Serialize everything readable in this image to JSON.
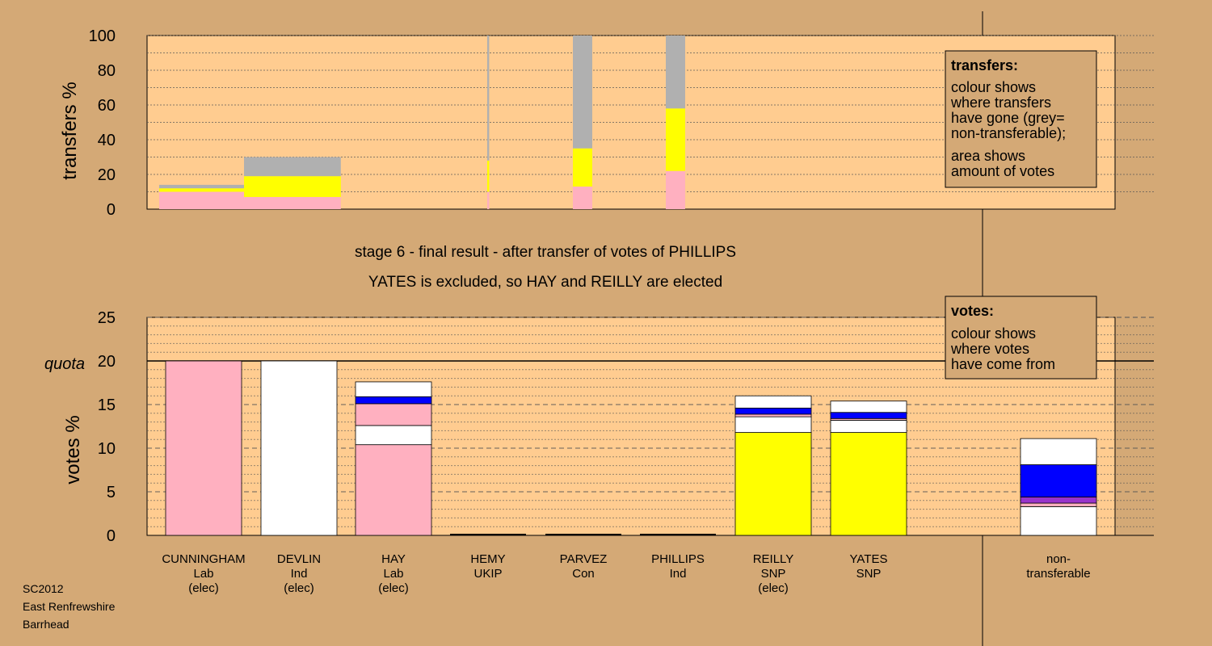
{
  "top_panel": {
    "ylabel": "transfers %",
    "yticks": [
      "0",
      "20",
      "40",
      "60",
      "80",
      "100"
    ],
    "legend": {
      "title": "transfers:",
      "lines": [
        "colour shows",
        "where transfers",
        "have gone (grey=",
        "non-transferable);",
        "area shows",
        "amount of votes"
      ]
    }
  },
  "headline": {
    "line1": "stage 6 - final result - after transfer of votes of PHILLIPS",
    "line2": "YATES is excluded, so HAY and REILLY are elected"
  },
  "bottom_panel": {
    "ylabel": "votes %",
    "quota_label": "quota",
    "yticks": [
      "0",
      "5",
      "10",
      "15",
      "20",
      "25"
    ],
    "legend": {
      "title": "votes:",
      "lines": [
        "colour shows",
        "where votes",
        "have come from"
      ]
    }
  },
  "candidates": [
    {
      "name": "CUNNINGHAM",
      "party": "Lab",
      "status": "(elec)"
    },
    {
      "name": "DEVLIN",
      "party": "Ind",
      "status": "(elec)"
    },
    {
      "name": "HAY",
      "party": "Lab",
      "status": "(elec)"
    },
    {
      "name": "HEMY",
      "party": "UKIP",
      "status": ""
    },
    {
      "name": "PARVEZ",
      "party": "Con",
      "status": ""
    },
    {
      "name": "PHILLIPS",
      "party": "Ind",
      "status": ""
    },
    {
      "name": "REILLY",
      "party": "SNP",
      "status": "(elec)"
    },
    {
      "name": "YATES",
      "party": "SNP",
      "status": ""
    }
  ],
  "nontransferable": {
    "line1": "non-",
    "line2": "transferable"
  },
  "footer": [
    "SC2012",
    "East Renfrewshire",
    "Barrhead"
  ],
  "colors": {
    "Lab": "#ffb0c0",
    "Ind": "#ffffff",
    "SNP": "#ffff00",
    "UKIP": "#9933cc",
    "Con": "#0000ff",
    "nontransferable": "#b0b0b0"
  },
  "chart_data": [
    {
      "type": "bar",
      "title": "",
      "ylabel": "transfers %",
      "ylim": [
        0,
        100
      ],
      "bars": [
        {
          "source": "CUNNINGHAM",
          "width_pct": 10.5,
          "segments": [
            {
              "color": "#ffb0c0",
              "value": 10
            },
            {
              "color": "#ffff00",
              "value": 2
            },
            {
              "color": "#b0b0b0",
              "value": 2
            }
          ]
        },
        {
          "source": "DEVLIN",
          "width_pct": 10,
          "segments": [
            {
              "color": "#ffb0c0",
              "value": 7
            },
            {
              "color": "#ffff00",
              "value": 12
            },
            {
              "color": "#b0b0b0",
              "value": 11
            }
          ]
        },
        {
          "source": "HEMY",
          "width_pct": 0.2,
          "segments": [
            {
              "color": "#ffb0c0",
              "value": 10
            },
            {
              "color": "#ffff00",
              "value": 18
            },
            {
              "color": "#b0b0b0",
              "value": 72
            }
          ]
        },
        {
          "source": "PARVEZ",
          "width_pct": 2,
          "segments": [
            {
              "color": "#ffb0c0",
              "value": 13
            },
            {
              "color": "#ffff00",
              "value": 22
            },
            {
              "color": "#b0b0b0",
              "value": 65
            }
          ]
        },
        {
          "source": "PHILLIPS",
          "width_pct": 2,
          "segments": [
            {
              "color": "#ffb0c0",
              "value": 22
            },
            {
              "color": "#ffff00",
              "value": 36
            },
            {
              "color": "#b0b0b0",
              "value": 42
            }
          ]
        }
      ]
    },
    {
      "type": "bar",
      "title": "",
      "ylabel": "votes %",
      "ylim": [
        0,
        25
      ],
      "quota": 20,
      "categories": [
        "CUNNINGHAM",
        "DEVLIN",
        "HAY",
        "HEMY",
        "PARVEZ",
        "PHILLIPS",
        "REILLY",
        "YATES",
        "non-transferable"
      ],
      "stacks": [
        [
          {
            "color": "#ffb0c0",
            "value": 20
          }
        ],
        [
          {
            "color": "#ffffff",
            "value": 20
          }
        ],
        [
          {
            "color": "#ffb0c0",
            "value": 10.4
          },
          {
            "color": "#ffffff",
            "value": 2.2
          },
          {
            "color": "#ffb0c0",
            "value": 2.5
          },
          {
            "color": "#0000ff",
            "value": 0.8
          },
          {
            "color": "#ffffff",
            "value": 1.7
          }
        ],
        [],
        [],
        [],
        [
          {
            "color": "#ffff00",
            "value": 11.8
          },
          {
            "color": "#ffffff",
            "value": 1.8
          },
          {
            "color": "#ffb0c0",
            "value": 0.3
          },
          {
            "color": "#0000ff",
            "value": 0.7
          },
          {
            "color": "#ffffff",
            "value": 1.4
          }
        ],
        [
          {
            "color": "#ffff00",
            "value": 11.8
          },
          {
            "color": "#ffffff",
            "value": 1.4
          },
          {
            "color": "#ffb0c0",
            "value": 0.2
          },
          {
            "color": "#0000ff",
            "value": 0.7
          },
          {
            "color": "#ffffff",
            "value": 1.3
          }
        ],
        [
          {
            "color": "#ffffff",
            "value": 3.3
          },
          {
            "color": "#ffb0c0",
            "value": 0.4
          },
          {
            "color": "#9933cc",
            "value": 0.7
          },
          {
            "color": "#0000ff",
            "value": 3.7
          },
          {
            "color": "#ffffff",
            "value": 3.0
          }
        ]
      ]
    }
  ]
}
